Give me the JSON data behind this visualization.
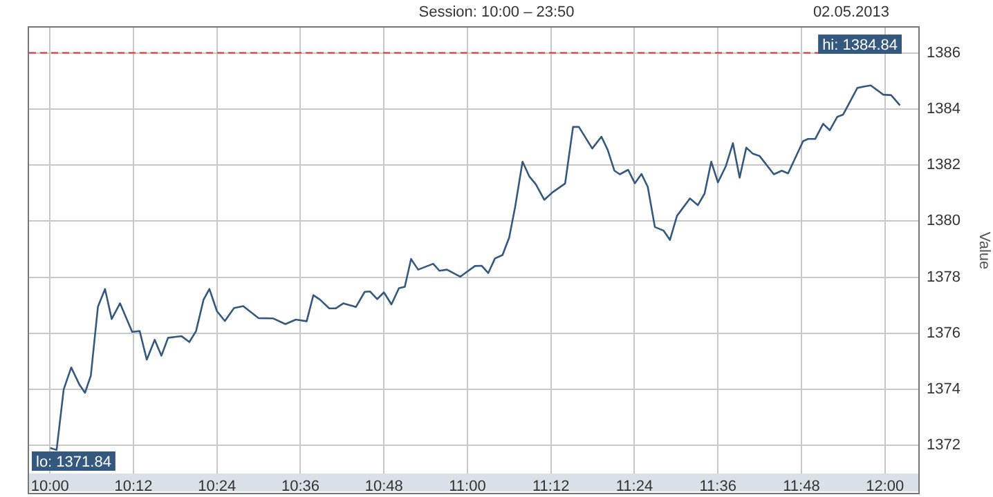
{
  "chart_data": {
    "type": "line",
    "title": "Session: 10:00 – 23:50",
    "subtitle": "02.05.2013",
    "ylabel": "Value",
    "x": [
      10.001,
      10.016,
      10.033,
      10.051,
      10.071,
      10.084,
      10.098,
      10.115,
      10.132,
      10.148,
      10.168,
      10.197,
      10.215,
      10.232,
      10.251,
      10.267,
      10.283,
      10.315,
      10.334,
      10.35,
      10.368,
      10.382,
      10.4,
      10.419,
      10.441,
      10.463,
      10.5,
      10.535,
      10.564,
      10.589,
      10.615,
      10.631,
      10.647,
      10.669,
      10.685,
      10.703,
      10.733,
      10.754,
      10.767,
      10.784,
      10.8,
      10.818,
      10.836,
      10.85,
      10.865,
      10.882,
      10.918,
      10.933,
      10.951,
      10.983,
      11.018,
      11.034,
      11.05,
      11.066,
      11.084,
      11.1,
      11.114,
      11.132,
      11.148,
      11.164,
      11.184,
      11.205,
      11.234,
      11.253,
      11.267,
      11.299,
      11.321,
      11.336,
      11.352,
      11.365,
      11.385,
      11.401,
      11.417,
      11.432,
      11.449,
      11.47,
      11.485,
      11.502,
      11.533,
      11.552,
      11.568,
      11.584,
      11.6,
      11.619,
      11.636,
      11.652,
      11.668,
      11.684,
      11.7,
      11.734,
      11.753,
      11.768,
      11.804,
      11.816,
      11.833,
      11.852,
      11.868,
      11.886,
      11.9,
      11.934,
      11.951,
      11.966,
      11.996,
      12.015,
      12.036
    ],
    "series": [
      {
        "color": "#34587e",
        "values": [
          1371.91,
          1371.84,
          1374.0,
          1374.78,
          1374.16,
          1373.88,
          1374.49,
          1376.95,
          1377.58,
          1376.51,
          1377.07,
          1376.05,
          1376.08,
          1375.06,
          1375.77,
          1375.2,
          1375.84,
          1375.9,
          1375.69,
          1376.08,
          1377.2,
          1377.58,
          1376.79,
          1376.44,
          1376.9,
          1376.97,
          1376.54,
          1376.53,
          1376.33,
          1376.49,
          1376.43,
          1377.36,
          1377.2,
          1376.89,
          1376.89,
          1377.07,
          1376.94,
          1377.48,
          1377.49,
          1377.22,
          1377.46,
          1377.03,
          1377.61,
          1377.66,
          1378.65,
          1378.27,
          1378.48,
          1378.23,
          1378.27,
          1378.02,
          1378.4,
          1378.41,
          1378.15,
          1378.67,
          1378.79,
          1379.41,
          1380.48,
          1382.12,
          1381.6,
          1381.31,
          1380.76,
          1381.04,
          1381.34,
          1383.36,
          1383.36,
          1382.59,
          1383.01,
          1382.54,
          1381.8,
          1381.67,
          1381.83,
          1381.35,
          1381.68,
          1381.22,
          1379.79,
          1379.66,
          1379.33,
          1380.19,
          1380.81,
          1380.57,
          1380.98,
          1382.12,
          1381.38,
          1381.96,
          1382.78,
          1381.55,
          1382.62,
          1382.4,
          1382.32,
          1381.67,
          1381.8,
          1381.7,
          1382.85,
          1382.93,
          1382.93,
          1383.47,
          1383.24,
          1383.72,
          1383.8,
          1384.75,
          1384.8,
          1384.84,
          1384.51,
          1384.49,
          1384.13
        ]
      }
    ],
    "xlim": [
      9.95,
      12.08
    ],
    "ylim": [
      1371,
      1386.9
    ],
    "xticks": [
      {
        "value": 10,
        "label": "10:00"
      },
      {
        "value": 10.2,
        "label": "10:12"
      },
      {
        "value": 10.4,
        "label": "10:24"
      },
      {
        "value": 10.6,
        "label": "10:36"
      },
      {
        "value": 10.8,
        "label": "10:48"
      },
      {
        "value": 11,
        "label": "11:00"
      },
      {
        "value": 11.2,
        "label": "11:12"
      },
      {
        "value": 11.4,
        "label": "11:24"
      },
      {
        "value": 11.6,
        "label": "11:36"
      },
      {
        "value": 11.8,
        "label": "11:48"
      },
      {
        "value": 12,
        "label": "12:00"
      }
    ],
    "yticks": [
      1372,
      1374,
      1376,
      1378,
      1380,
      1382,
      1384,
      1386
    ],
    "ref_lines": [
      {
        "axis": "y",
        "value": 1386,
        "color": "#e03030",
        "line_style": "dashed"
      }
    ],
    "annotations": [
      "hi: 1384.84",
      "lo: 1371.84"
    ],
    "grid": true,
    "legend": false,
    "marker": "none",
    "line_style": "solid"
  }
}
